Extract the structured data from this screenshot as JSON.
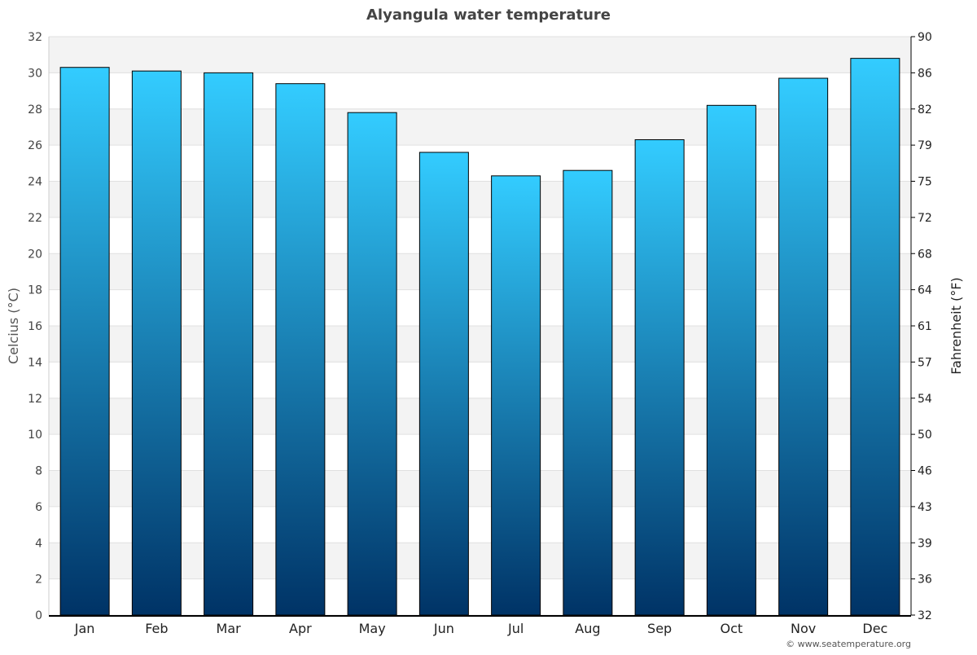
{
  "chart_data": {
    "type": "bar",
    "title": "Alyangula water temperature",
    "categories": [
      "Jan",
      "Feb",
      "Mar",
      "Apr",
      "May",
      "Jun",
      "Jul",
      "Aug",
      "Sep",
      "Oct",
      "Nov",
      "Dec"
    ],
    "values": [
      30.3,
      30.1,
      30.0,
      29.4,
      27.8,
      25.6,
      24.3,
      24.6,
      26.3,
      28.2,
      29.7,
      30.8
    ],
    "ylabel": "Celcius (°C)",
    "ylabel_right": "Fahrenheit (°F)",
    "ylim": [
      0,
      32
    ],
    "yticks": [
      0,
      2,
      4,
      6,
      8,
      10,
      12,
      14,
      16,
      18,
      20,
      22,
      24,
      26,
      28,
      30,
      32
    ],
    "yticks_right": [
      "32",
      "36",
      "39",
      "43",
      "46",
      "50",
      "54",
      "57",
      "61",
      "64",
      "68",
      "72",
      "75",
      "79",
      "82",
      "86",
      "90"
    ],
    "grid": true,
    "colors": {
      "bar_top": "#33ccff",
      "bar_bottom": "#003366",
      "band": "#f3f3f3"
    }
  },
  "credit": "© www.seatemperature.org"
}
